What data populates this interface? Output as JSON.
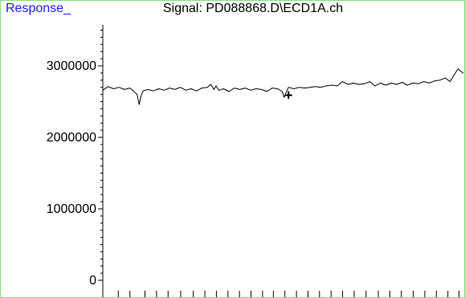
{
  "chart_data": {
    "type": "line",
    "title": "Signal: PD088868.D\\ECD1A.ch",
    "ylabel": "Response_",
    "xlabel": "",
    "ylim": [
      0,
      3600000
    ],
    "yticks": [
      {
        "value": 0,
        "label": "0"
      },
      {
        "value": 1000000,
        "label": "1000000"
      },
      {
        "value": 2000000,
        "label": "2000000"
      },
      {
        "value": 3000000,
        "label": "3000000"
      }
    ],
    "xlim": [
      0,
      100
    ],
    "x_major_ticks": [
      0,
      21.6,
      47.3,
      73.0,
      98.8
    ],
    "x_minor_ticks": [
      4.3,
      7.5,
      11.7,
      14.9,
      18.1,
      25.1,
      28.3,
      31.5,
      34.7,
      37.9,
      41.1,
      44.3,
      50.5,
      53.7,
      56.9,
      60.1,
      63.3,
      66.5,
      69.7,
      76.4,
      79.6,
      82.8,
      86.1,
      89.3,
      92.5,
      95.7
    ],
    "series": [
      {
        "name": "",
        "color": "#000000",
        "x": [
          0,
          1.5,
          3,
          4.5,
          6,
          7.5,
          8.5,
          9.5,
          10.1,
          10.6,
          11.2,
          12.5,
          14,
          15.5,
          17,
          18.5,
          20,
          21.5,
          23,
          24.5,
          26,
          27.5,
          29,
          30,
          30.8,
          31.4,
          32.2,
          33.5,
          35,
          36.5,
          38,
          39.5,
          41,
          42.5,
          44,
          45.5,
          47,
          48.5,
          49.8,
          50.3,
          50.8,
          51.5,
          53,
          54.5,
          56,
          57.5,
          59,
          60.5,
          62,
          63.5,
          65,
          66.5,
          68,
          69.5,
          71,
          72.5,
          74,
          75.5,
          77,
          78.5,
          80,
          81.5,
          83,
          84.5,
          86,
          87.5,
          89,
          90.5,
          92,
          93.5,
          95,
          96.3,
          97.5,
          98.5,
          99.3,
          100
        ],
        "y": [
          2660000,
          2710000,
          2680000,
          2700000,
          2670000,
          2690000,
          2650000,
          2600000,
          2460000,
          2580000,
          2650000,
          2670000,
          2650000,
          2680000,
          2660000,
          2690000,
          2670000,
          2700000,
          2660000,
          2680000,
          2650000,
          2690000,
          2700000,
          2740000,
          2670000,
          2720000,
          2660000,
          2680000,
          2640000,
          2690000,
          2670000,
          2690000,
          2660000,
          2680000,
          2670000,
          2640000,
          2690000,
          2680000,
          2640000,
          2560000,
          2620000,
          2700000,
          2680000,
          2700000,
          2690000,
          2700000,
          2710000,
          2700000,
          2720000,
          2730000,
          2720000,
          2780000,
          2740000,
          2760000,
          2740000,
          2750000,
          2780000,
          2720000,
          2760000,
          2730000,
          2760000,
          2740000,
          2770000,
          2730000,
          2760000,
          2750000,
          2780000,
          2760000,
          2790000,
          2800000,
          2830000,
          2780000,
          2880000,
          2960000,
          2920000,
          2900000
        ]
      }
    ],
    "annotations": [
      {
        "text": "+",
        "x": 51.5,
        "y": 2520000
      }
    ],
    "grid": false,
    "legend": "none"
  },
  "colors": {
    "frame_border": "#7fe07f",
    "ylabel_text": "#1a1aff",
    "trace": "#000000"
  }
}
